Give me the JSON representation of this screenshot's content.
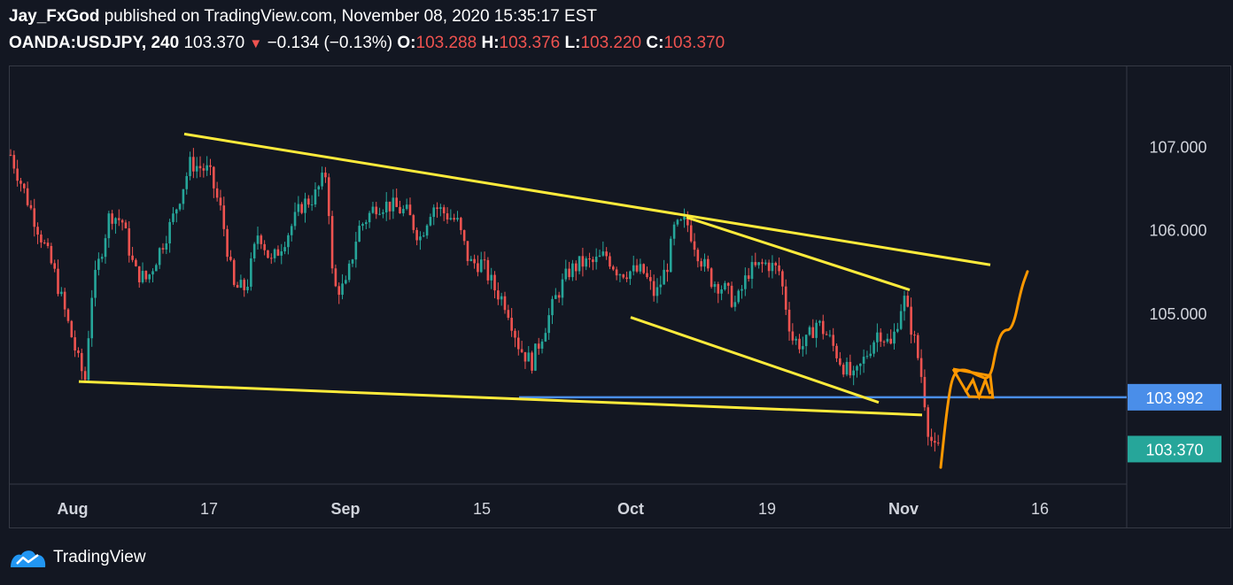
{
  "header": {
    "author": "Jay_FxGod",
    "published_text": " published on TradingView.com, November 08, 2020 15:35:17 EST",
    "symbol": "OANDA:USDJPY, 240",
    "last": "103.370",
    "change_arrow": "▼",
    "change": "−0.134 (−0.13%)",
    "o_label": "O:",
    "o_value": "103.288",
    "h_label": "H:",
    "h_value": "103.376",
    "l_label": "L:",
    "l_value": "103.220",
    "c_label": "C:",
    "c_value": "103.370"
  },
  "footer": {
    "brand": "TradingView",
    "logo_icon": "tradingview-logo-icon"
  },
  "colors": {
    "background": "#131722",
    "up": "#26a69a",
    "down": "#ef5350",
    "trendline": "#ffeb3b",
    "support": "#4a8ee9",
    "projection": "#ff9800",
    "axis_text": "#d1d4dc"
  },
  "chart_data": {
    "type": "candlestick",
    "title": "",
    "xlabel": "",
    "ylabel": "",
    "ylim": [
      102.95,
      107.95
    ],
    "xlim": [
      0,
      90
    ],
    "x_ticks": [
      {
        "x": 5,
        "label": "Aug"
      },
      {
        "x": 16,
        "label": "17"
      },
      {
        "x": 27,
        "label": "Sep"
      },
      {
        "x": 38,
        "label": "15"
      },
      {
        "x": 50,
        "label": "Oct"
      },
      {
        "x": 61,
        "label": "19"
      },
      {
        "x": 72,
        "label": "Nov"
      },
      {
        "x": 83,
        "label": "16"
      }
    ],
    "y_ticks": [
      "107.000",
      "106.000",
      "105.000"
    ],
    "price_labels": [
      {
        "value": 103.992,
        "label": "103.992",
        "color": "#4a8ee9"
      },
      {
        "value": 103.37,
        "label": "103.370",
        "color": "#26a69a"
      }
    ],
    "price_path": [
      [
        0,
        106.9
      ],
      [
        1.5,
        106.3
      ],
      [
        3.5,
        105.5
      ],
      [
        5.5,
        104.4
      ],
      [
        6,
        104.2
      ],
      [
        6.5,
        105.2
      ],
      [
        8,
        106.2
      ],
      [
        9,
        106.1
      ],
      [
        10,
        105.5
      ],
      [
        11,
        105.4
      ],
      [
        13,
        106.1
      ],
      [
        14.5,
        106.8
      ],
      [
        16,
        106.7
      ],
      [
        17,
        106.2
      ],
      [
        18,
        105.3
      ],
      [
        19,
        105.3
      ],
      [
        20,
        106.0
      ],
      [
        21,
        105.6
      ],
      [
        22.5,
        106.0
      ],
      [
        23.5,
        106.3
      ],
      [
        24.5,
        106.4
      ],
      [
        25.5,
        106.7
      ],
      [
        26,
        105.3
      ],
      [
        27,
        105.3
      ],
      [
        28,
        106.0
      ],
      [
        29.5,
        106.3
      ],
      [
        30.5,
        106.3
      ],
      [
        32,
        106.2
      ],
      [
        33,
        105.9
      ],
      [
        34,
        106.3
      ],
      [
        36,
        106.1
      ],
      [
        37,
        105.6
      ],
      [
        38,
        105.6
      ],
      [
        39,
        105.3
      ],
      [
        40,
        105.1
      ],
      [
        41,
        104.6
      ],
      [
        42,
        104.4
      ],
      [
        42.5,
        104.6
      ],
      [
        43,
        104.8
      ],
      [
        44,
        105.2
      ],
      [
        45,
        105.5
      ],
      [
        46,
        105.6
      ],
      [
        47,
        105.6
      ],
      [
        48,
        105.7
      ],
      [
        49,
        105.5
      ],
      [
        50,
        105.5
      ],
      [
        51,
        105.5
      ],
      [
        52,
        105.2
      ],
      [
        53,
        105.6
      ],
      [
        53.5,
        106.0
      ],
      [
        54.5,
        106.1
      ],
      [
        55.5,
        105.7
      ],
      [
        56.5,
        105.4
      ],
      [
        57.5,
        105.3
      ],
      [
        58.5,
        105.1
      ],
      [
        59.5,
        105.5
      ],
      [
        61,
        105.6
      ],
      [
        62,
        105.5
      ],
      [
        63,
        104.7
      ],
      [
        64,
        104.6
      ],
      [
        65,
        104.9
      ],
      [
        66,
        104.7
      ],
      [
        67,
        104.4
      ],
      [
        68,
        104.2
      ],
      [
        69,
        104.5
      ],
      [
        70,
        104.8
      ],
      [
        71,
        104.6
      ],
      [
        72,
        105.2
      ],
      [
        72.5,
        104.9
      ],
      [
        73,
        104.6
      ],
      [
        73.5,
        104.2
      ],
      [
        74,
        103.6
      ],
      [
        74.5,
        103.35
      ],
      [
        74.8,
        103.37
      ]
    ],
    "trendlines": [
      {
        "from": [
          14,
          107.15
        ],
        "to": [
          79,
          105.58
        ],
        "color": "#ffeb3b"
      },
      {
        "from": [
          5.5,
          104.18
        ],
        "to": [
          73.5,
          103.78
        ],
        "color": "#ffeb3b"
      },
      {
        "from": [
          54.5,
          106.15
        ],
        "to": [
          72.5,
          105.28
        ],
        "color": "#ffeb3b"
      },
      {
        "from": [
          50,
          104.95
        ],
        "to": [
          70,
          103.93
        ],
        "color": "#ffeb3b"
      }
    ],
    "support_line": {
      "value": 103.992,
      "from_x": 41
    },
    "projection": [
      [
        75,
        103.15
      ],
      [
        75.5,
        103.85
      ],
      [
        76,
        104.3
      ],
      [
        77,
        104.33
      ],
      [
        78,
        104.25
      ],
      [
        79,
        104.2
      ],
      [
        79.5,
        104.6
      ],
      [
        80,
        104.8
      ],
      [
        80.8,
        104.8
      ],
      [
        81.5,
        105.3
      ],
      [
        82,
        105.5
      ]
    ]
  }
}
